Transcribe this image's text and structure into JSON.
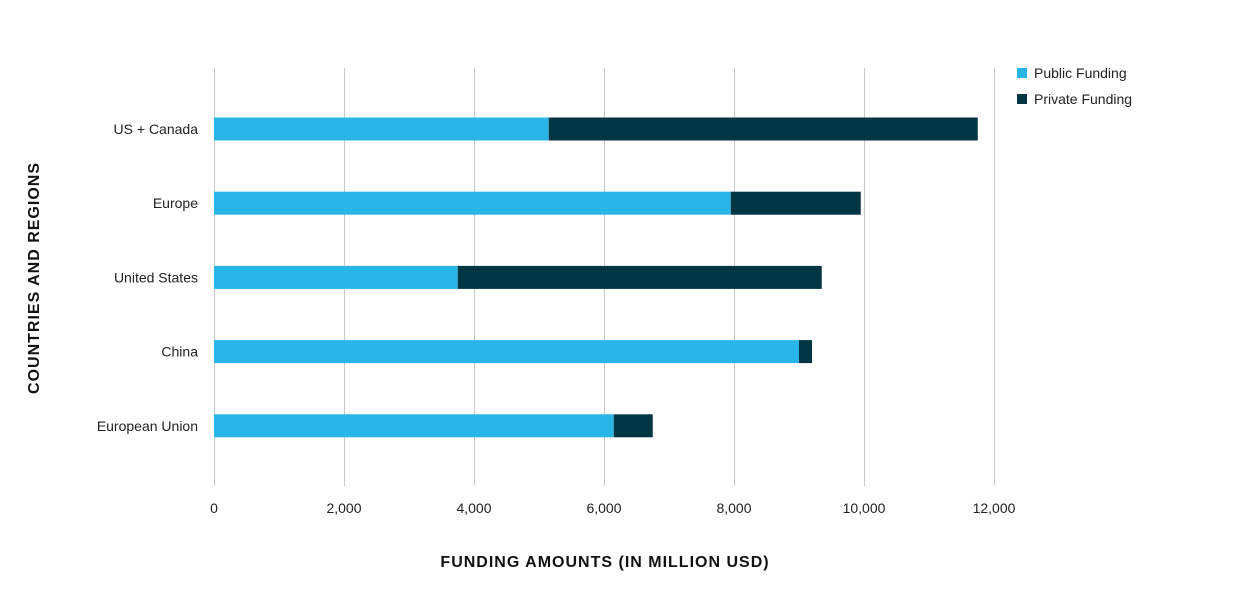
{
  "chart_data": {
    "type": "bar",
    "orientation": "horizontal",
    "stacked": true,
    "title": "",
    "xlabel": "FUNDING AMOUNTS (IN MILLION USD)",
    "ylabel": "COUNTRIES AND REGIONS",
    "xlim": [
      0,
      12000
    ],
    "x_ticks": [
      0,
      2000,
      4000,
      6000,
      8000,
      10000,
      12000
    ],
    "x_tick_labels": [
      "0",
      "2,000",
      "4,000",
      "6,000",
      "8,000",
      "10,000",
      "12,000"
    ],
    "grid": true,
    "legend_position": "top-right",
    "categories": [
      "US + Canada",
      "Europe",
      "United States",
      "China",
      "European Union"
    ],
    "series": [
      {
        "name": "Public Funding",
        "color": "#29b5e8",
        "values": [
          5150,
          7950,
          3750,
          9000,
          6150
        ]
      },
      {
        "name": "Private Funding",
        "color": "#003543",
        "values": [
          6600,
          2000,
          5600,
          200,
          600
        ]
      }
    ]
  }
}
